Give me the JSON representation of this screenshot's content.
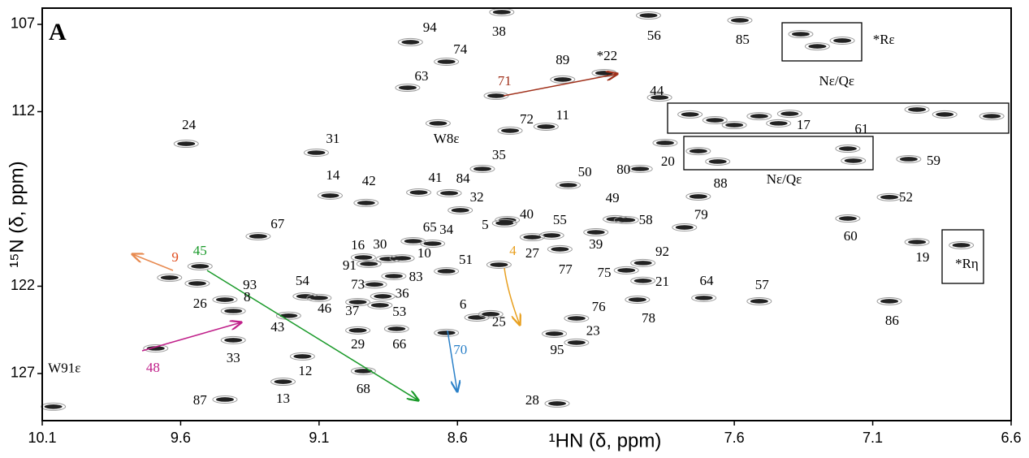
{
  "panel_label": "A",
  "chart_data": {
    "type": "scatter",
    "x_label": "¹HN (δ, ppm)",
    "y_label": "¹⁵N (δ, ppm)",
    "xlim": [
      10.1,
      6.6
    ],
    "ylim": [
      106.07,
      129.7
    ],
    "xticks": [
      10.1,
      9.6,
      9.1,
      8.6,
      7.6,
      7.1,
      6.6
    ],
    "yticks": [
      107,
      112,
      122,
      127
    ],
    "color": "#222222",
    "peaks": {
      "x": [
        8.44,
        7.91,
        7.58,
        8.77,
        8.64,
        8.78,
        8.22,
        8.07,
        8.46,
        7.87,
        8.41,
        8.28,
        8.67,
        9.58,
        9.11,
        8.51,
        7.44,
        7.19,
        7.85,
        7.94,
        6.97,
        7.73,
        8.2,
        9.06,
        8.93,
        8.74,
        8.63,
        8.59,
        7.04,
        8.03,
        7.78,
        7.99,
        7.19,
        8.42,
        8.26,
        8.43,
        9.32,
        8.76,
        8.69,
        6.94,
        8.33,
        8.1,
        8.94,
        8.85,
        8.8,
        8.23,
        8.92,
        8.64,
        7.93,
        8.45,
        9.64,
        9.53,
        8.83,
        8.9,
        7.99,
        7.93,
        7.71,
        7.51,
        9.54,
        9.44,
        9.41,
        9.15,
        8.87,
        9.1,
        7.04,
        7.95,
        8.53,
        8.96,
        8.88,
        8.17,
        8.48,
        9.21,
        8.96,
        8.82,
        8.17,
        8.25,
        9.41,
        9.16,
        8.94,
        9.23,
        9.44,
        8.24,
        9.69,
        8.64,
        10.06,
        7.36,
        7.3,
        7.21,
        6.78,
        7.76,
        7.67,
        7.51,
        7.4,
        6.94,
        6.84,
        6.67,
        7.73,
        7.66,
        7.17,
        7.6
      ],
      "y": [
        106.3,
        106.49,
        106.77,
        108.02,
        109.14,
        110.63,
        110.16,
        109.79,
        111.09,
        111.19,
        113.09,
        112.86,
        112.67,
        113.84,
        114.35,
        115.28,
        112.67,
        114.12,
        113.79,
        115.28,
        114.72,
        116.86,
        116.21,
        116.81,
        117.23,
        116.63,
        116.67,
        117.65,
        116.9,
        118.16,
        118.63,
        118.21,
        118.12,
        118.21,
        119.09,
        118.39,
        119.14,
        119.42,
        119.56,
        119.47,
        119.19,
        118.91,
        120.35,
        120.44,
        120.4,
        119.88,
        120.72,
        121.14,
        120.67,
        120.77,
        121.51,
        120.86,
        121.42,
        121.9,
        121.09,
        121.69,
        122.67,
        122.86,
        121.84,
        122.77,
        123.42,
        122.58,
        122.58,
        122.67,
        122.86,
        122.77,
        123.79,
        122.91,
        123.09,
        123.84,
        123.6,
        123.69,
        124.53,
        124.44,
        125.23,
        124.72,
        125.09,
        126.02,
        126.86,
        127.47,
        128.49,
        128.72,
        125.56,
        124.67,
        128.9,
        107.56,
        108.26,
        107.93,
        119.65,
        112.16,
        112.49,
        112.26,
        112.12,
        111.88,
        112.16,
        112.26,
        114.26,
        114.86,
        114.81,
        112.77
      ]
    },
    "annotations": [
      {
        "text": "38",
        "x": 8.45,
        "y": 107.47
      },
      {
        "text": "56",
        "x": 7.89,
        "y": 107.7
      },
      {
        "text": "85",
        "x": 7.57,
        "y": 107.93
      },
      {
        "text": "94",
        "x": 8.7,
        "y": 107.23
      },
      {
        "text": "74",
        "x": 8.59,
        "y": 108.49
      },
      {
        "text": "63",
        "x": 8.73,
        "y": 110.02
      },
      {
        "text": "89",
        "x": 8.22,
        "y": 109.09
      },
      {
        "text": "*22",
        "x": 8.06,
        "y": 108.86
      },
      {
        "text": "71",
        "x": 8.43,
        "y": 110.3,
        "color": "#a0301a"
      },
      {
        "text": "44",
        "x": 7.88,
        "y": 110.86
      },
      {
        "text": "72",
        "x": 8.35,
        "y": 112.49
      },
      {
        "text": "11",
        "x": 8.22,
        "y": 112.26
      },
      {
        "text": "W8ε",
        "x": 8.64,
        "y": 113.6
      },
      {
        "text": "24",
        "x": 9.57,
        "y": 112.81
      },
      {
        "text": "31",
        "x": 9.05,
        "y": 113.6
      },
      {
        "text": "35",
        "x": 8.45,
        "y": 114.53
      },
      {
        "text": "17",
        "x": 7.35,
        "y": 112.81
      },
      {
        "text": "61",
        "x": 7.14,
        "y": 113.05
      },
      {
        "text": "20",
        "x": 7.84,
        "y": 114.91
      },
      {
        "text": "80",
        "x": 8.0,
        "y": 115.37
      },
      {
        "text": "59",
        "x": 6.88,
        "y": 114.86
      },
      {
        "text": "88",
        "x": 7.65,
        "y": 116.16
      },
      {
        "text": "50",
        "x": 8.14,
        "y": 115.51
      },
      {
        "text": "14",
        "x": 9.05,
        "y": 115.7
      },
      {
        "text": "42",
        "x": 8.92,
        "y": 116.02
      },
      {
        "text": "41",
        "x": 8.68,
        "y": 115.84
      },
      {
        "text": "84",
        "x": 8.58,
        "y": 115.88
      },
      {
        "text": "32",
        "x": 8.53,
        "y": 116.95
      },
      {
        "text": "52",
        "x": 6.98,
        "y": 116.95
      },
      {
        "text": "49",
        "x": 8.04,
        "y": 117.0
      },
      {
        "text": "79",
        "x": 7.72,
        "y": 117.97
      },
      {
        "text": "58",
        "x": 7.92,
        "y": 118.26
      },
      {
        "text": "60",
        "x": 7.18,
        "y": 119.19
      },
      {
        "text": "40",
        "x": 8.35,
        "y": 117.93
      },
      {
        "text": "55",
        "x": 8.23,
        "y": 118.26
      },
      {
        "text": "5",
        "x": 8.5,
        "y": 118.53
      },
      {
        "text": "67",
        "x": 9.25,
        "y": 118.49
      },
      {
        "text": "65",
        "x": 8.7,
        "y": 118.67
      },
      {
        "text": "34",
        "x": 8.64,
        "y": 118.81
      },
      {
        "text": "19",
        "x": 6.92,
        "y": 120.4
      },
      {
        "text": "27",
        "x": 8.33,
        "y": 120.16
      },
      {
        "text": "39",
        "x": 8.1,
        "y": 119.65
      },
      {
        "text": "16",
        "x": 8.96,
        "y": 119.7
      },
      {
        "text": "30",
        "x": 8.88,
        "y": 119.65
      },
      {
        "text": "10",
        "x": 8.72,
        "y": 120.16
      },
      {
        "text": "77",
        "x": 8.21,
        "y": 121.09
      },
      {
        "text": "91",
        "x": 8.99,
        "y": 120.86
      },
      {
        "text": "51",
        "x": 8.57,
        "y": 120.53
      },
      {
        "text": "92",
        "x": 7.86,
        "y": 120.07
      },
      {
        "text": "4",
        "x": 8.4,
        "y": 120.02,
        "color": "#e8a020"
      },
      {
        "text": "9",
        "x": 9.62,
        "y": 120.4,
        "color": "#e04a1a"
      },
      {
        "text": "45",
        "x": 9.53,
        "y": 120.02,
        "color": "#1a9a2a"
      },
      {
        "text": "83",
        "x": 8.75,
        "y": 121.51
      },
      {
        "text": "73",
        "x": 8.96,
        "y": 121.95
      },
      {
        "text": "75",
        "x": 8.07,
        "y": 121.28
      },
      {
        "text": "21",
        "x": 7.86,
        "y": 121.79
      },
      {
        "text": "64",
        "x": 7.7,
        "y": 121.74
      },
      {
        "text": "57",
        "x": 7.5,
        "y": 121.98
      },
      {
        "text": "26",
        "x": 9.53,
        "y": 123.05
      },
      {
        "text": "93",
        "x": 9.35,
        "y": 121.98
      },
      {
        "text": "8",
        "x": 9.36,
        "y": 122.67
      },
      {
        "text": "54",
        "x": 9.16,
        "y": 121.74
      },
      {
        "text": "36",
        "x": 8.8,
        "y": 122.48
      },
      {
        "text": "46",
        "x": 9.08,
        "y": 123.33
      },
      {
        "text": "86",
        "x": 7.03,
        "y": 124.02
      },
      {
        "text": "78",
        "x": 7.91,
        "y": 123.88
      },
      {
        "text": "6",
        "x": 8.58,
        "y": 123.09
      },
      {
        "text": "37",
        "x": 8.98,
        "y": 123.46
      },
      {
        "text": "53",
        "x": 8.81,
        "y": 123.51
      },
      {
        "text": "76",
        "x": 8.09,
        "y": 123.23
      },
      {
        "text": "25",
        "x": 8.45,
        "y": 124.11
      },
      {
        "text": "43",
        "x": 9.25,
        "y": 124.39
      },
      {
        "text": "29",
        "x": 8.96,
        "y": 125.37
      },
      {
        "text": "66",
        "x": 8.81,
        "y": 125.37
      },
      {
        "text": "23",
        "x": 8.11,
        "y": 124.62
      },
      {
        "text": "95",
        "x": 8.24,
        "y": 125.7
      },
      {
        "text": "33",
        "x": 9.41,
        "y": 126.16
      },
      {
        "text": "12",
        "x": 9.15,
        "y": 126.91
      },
      {
        "text": "68",
        "x": 8.94,
        "y": 127.93
      },
      {
        "text": "13",
        "x": 9.23,
        "y": 128.49
      },
      {
        "text": "87",
        "x": 9.53,
        "y": 128.58
      },
      {
        "text": "28",
        "x": 8.33,
        "y": 128.58
      },
      {
        "text": "48",
        "x": 9.7,
        "y": 126.72,
        "color": "#c0208a"
      },
      {
        "text": "70",
        "x": 8.59,
        "y": 125.7,
        "color": "#2a80c8"
      },
      {
        "text": "W91ε",
        "x": 10.02,
        "y": 126.74
      },
      {
        "text": "*Rε",
        "x": 7.06,
        "y": 107.93
      },
      {
        "text": "Nε/Qε",
        "x": 7.23,
        "y": 110.3
      },
      {
        "text": "Nε/Qε",
        "x": 7.42,
        "y": 115.93
      },
      {
        "text": "*Rη",
        "x": 6.76,
        "y": 120.77
      }
    ]
  }
}
